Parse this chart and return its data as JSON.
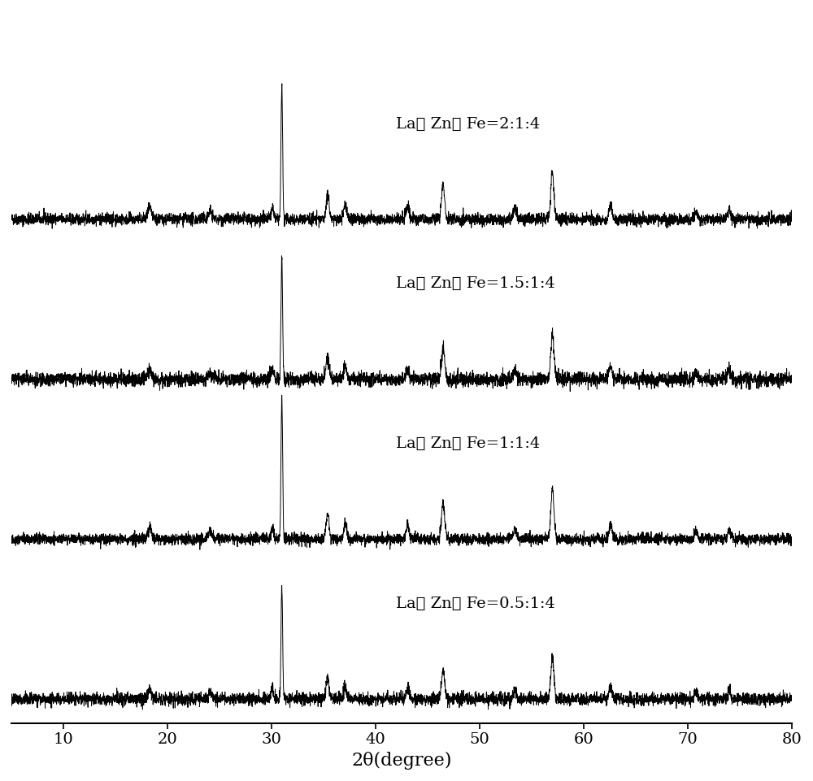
{
  "labels": [
    "La： Zn： Fe=2:1:4",
    "La： Zn： Fe=1.5:1:4",
    "La： Zn： Fe=1:1:4",
    "La： Zn： Fe=0.5:1:4"
  ],
  "xlabel": "2θ(degree)",
  "xmin": 5,
  "xmax": 80,
  "offsets": [
    3.0,
    2.0,
    1.0,
    0.0
  ],
  "peak_positions": [
    18.3,
    24.1,
    30.1,
    31.0,
    35.4,
    37.1,
    43.1,
    46.5,
    53.4,
    57.0,
    62.6,
    70.8,
    74.0
  ],
  "peak_heights": [
    0.07,
    0.05,
    0.07,
    0.85,
    0.15,
    0.09,
    0.08,
    0.22,
    0.07,
    0.3,
    0.09,
    0.05,
    0.06
  ],
  "peak_widths": [
    0.4,
    0.4,
    0.3,
    0.18,
    0.35,
    0.35,
    0.35,
    0.35,
    0.35,
    0.35,
    0.35,
    0.35,
    0.35
  ],
  "noise_level": 0.018,
  "line_color": "#000000",
  "background_color": "#ffffff",
  "figsize": [
    10.0,
    9.61
  ],
  "dpi": 100
}
